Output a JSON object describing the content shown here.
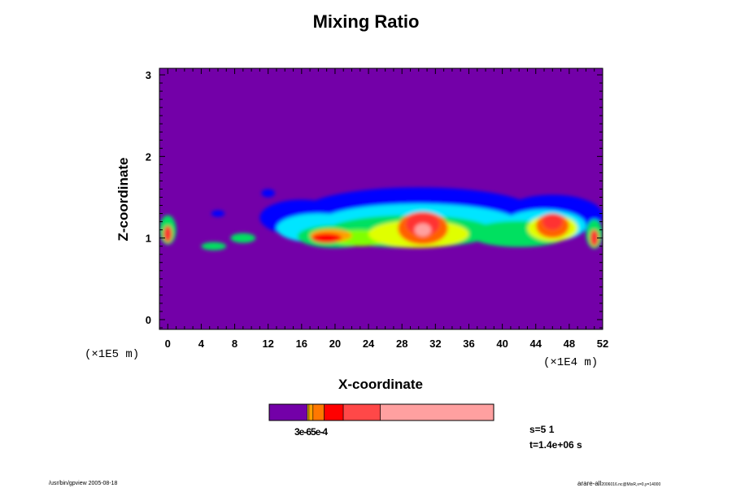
{
  "chart_data": {
    "type": "heatmap",
    "title": "Mixing Ratio",
    "xlabel": "X-coordinate",
    "ylabel": "Z-coordinate",
    "x_scale_note": "(×1E4 m)",
    "y_scale_note": "(×1E5 m)",
    "xlim": [
      -1,
      52
    ],
    "ylim": [
      -0.12,
      3.08
    ],
    "x_ticks": [
      0,
      4,
      8,
      12,
      16,
      20,
      24,
      28,
      32,
      36,
      40,
      44,
      48,
      52
    ],
    "y_ticks": [
      0,
      1,
      2,
      3
    ],
    "background_color": "#7300a8",
    "colorbar": {
      "segments": [
        {
          "color": "#7300a8",
          "fraction": 0.17
        },
        {
          "color": "#ffd400",
          "fraction": 0.007
        },
        {
          "color": "#ffa000",
          "fraction": 0.018
        },
        {
          "color": "#ff7800",
          "fraction": 0.05
        },
        {
          "color": "#ff0000",
          "fraction": 0.085
        },
        {
          "color": "#ff4848",
          "fraction": 0.165
        },
        {
          "color": "#ffa0a0",
          "fraction": 0.505
        }
      ],
      "label": "3e-65e-4"
    },
    "fields": [
      {
        "x": 16,
        "z": 1.25,
        "rx": 5,
        "rz": 0.22,
        "color": "#0000ff"
      },
      {
        "x": 30,
        "z": 1.32,
        "rx": 14,
        "rz": 0.3,
        "color": "#0000ff"
      },
      {
        "x": 46,
        "z": 1.28,
        "rx": 6,
        "rz": 0.25,
        "color": "#0000ff"
      },
      {
        "x": 18,
        "z": 1.12,
        "rx": 5,
        "rz": 0.18,
        "color": "#00e5ff"
      },
      {
        "x": 30,
        "z": 1.18,
        "rx": 12,
        "rz": 0.24,
        "color": "#00e5ff"
      },
      {
        "x": 45,
        "z": 1.15,
        "rx": 5,
        "rz": 0.2,
        "color": "#00e5ff"
      },
      {
        "x": 20,
        "z": 1.02,
        "rx": 4.5,
        "rz": 0.14,
        "color": "#00e060"
      },
      {
        "x": 29,
        "z": 1.08,
        "rx": 10,
        "rz": 0.2,
        "color": "#00e060"
      },
      {
        "x": 42,
        "z": 1.05,
        "rx": 6,
        "rz": 0.16,
        "color": "#00e060"
      },
      {
        "x": 23,
        "z": 1.0,
        "rx": 3.5,
        "rz": 0.1,
        "color": "#80ff00"
      },
      {
        "x": 30,
        "z": 1.05,
        "rx": 6,
        "rz": 0.17,
        "color": "#e0ff00"
      },
      {
        "x": 46,
        "z": 1.12,
        "rx": 3,
        "rz": 0.16,
        "color": "#e0ff00"
      },
      {
        "x": 19.5,
        "z": 1.03,
        "rx": 2.5,
        "rz": 0.08,
        "color": "#ffa000"
      },
      {
        "x": 30.5,
        "z": 1.12,
        "rx": 3,
        "rz": 0.2,
        "color": "#ff6000"
      },
      {
        "x": 46,
        "z": 1.15,
        "rx": 2,
        "rz": 0.15,
        "color": "#ff6000"
      },
      {
        "x": 19,
        "z": 1.0,
        "rx": 1.8,
        "rz": 0.06,
        "color": "#ff0000"
      },
      {
        "x": 30.5,
        "z": 1.17,
        "rx": 2,
        "rz": 0.14,
        "color": "#ff3030"
      },
      {
        "x": 46,
        "z": 1.2,
        "rx": 1.2,
        "rz": 0.1,
        "color": "#ff3030"
      },
      {
        "x": 30.5,
        "z": 1.1,
        "rx": 1,
        "rz": 0.08,
        "color": "#ffa0a0"
      },
      {
        "x": 0,
        "z": 1.1,
        "rx": 1,
        "rz": 0.18,
        "color": "#00e060"
      },
      {
        "x": 0,
        "z": 1.05,
        "rx": 0.5,
        "rz": 0.1,
        "color": "#ff3030"
      },
      {
        "x": 51,
        "z": 1.05,
        "rx": 1,
        "rz": 0.18,
        "color": "#00e060"
      },
      {
        "x": 51,
        "z": 1.0,
        "rx": 0.5,
        "rz": 0.1,
        "color": "#ff3030"
      },
      {
        "x": 5.5,
        "z": 0.9,
        "rx": 1.5,
        "rz": 0.05,
        "color": "#00e060"
      },
      {
        "x": 9,
        "z": 1.0,
        "rx": 1.5,
        "rz": 0.06,
        "color": "#00e060"
      },
      {
        "x": 6,
        "z": 1.3,
        "rx": 0.8,
        "rz": 0.04,
        "color": "#0000ff"
      },
      {
        "x": 12,
        "z": 1.55,
        "rx": 0.8,
        "rz": 0.05,
        "color": "#0000ff"
      }
    ]
  },
  "info": {
    "s_text": "s=5 1",
    "t_text": "t=1.4e+06 s"
  },
  "footer": {
    "left_text": "/usr/bin/gpview 2005-08-18",
    "right_text": "arare-all",
    "right_subtext": "2006016.nc@MixR,x=0,y=14000"
  }
}
